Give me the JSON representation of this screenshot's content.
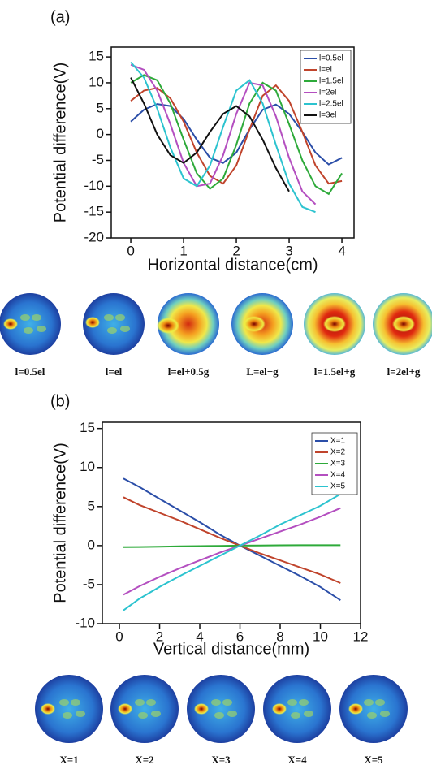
{
  "chart_data": [
    {
      "type": "line",
      "panel_label": "(a)",
      "x_label": "Horizontal distance(cm)",
      "y_label": "Potential difference(V)",
      "x": [
        0,
        0.25,
        0.5,
        0.75,
        1,
        1.25,
        1.5,
        1.75,
        2,
        2.25,
        2.5,
        2.75,
        3,
        3.25,
        3.5,
        3.75,
        4
      ],
      "series": [
        {
          "name": "l=0.5el",
          "color": "#2b4ea8",
          "values": [
            2.5,
            4.8,
            5.9,
            5.5,
            3,
            -1,
            -4.5,
            -5.5,
            -3.5,
            1,
            4.8,
            5.8,
            4,
            0.5,
            -3.5,
            -5.8,
            -4.5
          ]
        },
        {
          "name": "l=el",
          "color": "#c0442c",
          "values": [
            6.5,
            8.5,
            9,
            7,
            2.5,
            -3.5,
            -8,
            -9.5,
            -6,
            1,
            7.5,
            9.5,
            6.5,
            0.5,
            -6,
            -9.5,
            -9
          ]
        },
        {
          "name": "l=1.5el",
          "color": "#2eaa3a",
          "values": [
            10,
            11.5,
            10.5,
            6,
            -1,
            -7.5,
            -10.5,
            -8.5,
            -2,
            6,
            10,
            8.5,
            2,
            -5,
            -10,
            -11.5,
            -7.5
          ]
        },
        {
          "name": "l=2el",
          "color": "#b44fc0",
          "values": [
            13.5,
            12.5,
            8.5,
            2,
            -5.5,
            -10,
            -9.5,
            -4,
            4,
            10,
            9.5,
            3.5,
            -4.5,
            -11,
            -13.5,
            null,
            null
          ]
        },
        {
          "name": "l=2.5el",
          "color": "#2cc3cf",
          "values": [
            14,
            11,
            5,
            -2.5,
            -8.5,
            -10,
            -6,
            1.5,
            8.5,
            10.5,
            6,
            -2,
            -9.5,
            -14,
            -15,
            null,
            null
          ]
        },
        {
          "name": "l=3el",
          "color": "#111111",
          "values": [
            11,
            6,
            0,
            -4,
            -5.5,
            -3.5,
            0.5,
            4,
            5.5,
            3.5,
            -1,
            -6.5,
            -11,
            null,
            null,
            null,
            null
          ]
        }
      ],
      "xlim": [
        -0.37,
        4.23
      ],
      "xticks": [
        0,
        1,
        2,
        3,
        4
      ],
      "ylim": [
        -20,
        16.9
      ],
      "yticks": [
        -20,
        -15,
        -10,
        -5,
        0,
        5,
        10,
        15
      ],
      "legend": "upper right"
    },
    {
      "type": "line",
      "panel_label": "(b)",
      "x_label": "Vertical distance(mm)",
      "y_label": "Potential difference(V)",
      "x": [
        0.2,
        1,
        2,
        3,
        4,
        5,
        6,
        7,
        8,
        9,
        10,
        11
      ],
      "series": [
        {
          "name": "X=1",
          "color": "#2b4ea8",
          "values": [
            8.6,
            7.5,
            6,
            4.5,
            3,
            1.4,
            0,
            -1.3,
            -2.6,
            -3.9,
            -5.3,
            -7
          ]
        },
        {
          "name": "X=2",
          "color": "#c0442c",
          "values": [
            6.2,
            5.2,
            4.2,
            3.2,
            2.1,
            1,
            0,
            -1,
            -1.9,
            -2.8,
            -3.7,
            -4.8
          ]
        },
        {
          "name": "X=3",
          "color": "#2eaa3a",
          "values": [
            -0.2,
            -0.18,
            -0.15,
            -0.1,
            -0.07,
            -0.03,
            0,
            0.02,
            0.04,
            0.05,
            0.05,
            0.05
          ]
        },
        {
          "name": "X=4",
          "color": "#b44fc0",
          "values": [
            -6.3,
            -5.2,
            -4,
            -2.9,
            -1.9,
            -0.9,
            0,
            0.9,
            1.8,
            2.7,
            3.7,
            4.8
          ]
        },
        {
          "name": "X=5",
          "color": "#2cc3cf",
          "values": [
            -8.3,
            -6.8,
            -5.3,
            -3.9,
            -2.6,
            -1.3,
            0,
            1.3,
            2.7,
            3.9,
            5.1,
            6.6
          ]
        }
      ],
      "xlim": [
        -0.85,
        12
      ],
      "xticks": [
        0,
        2,
        4,
        6,
        8,
        10,
        12
      ],
      "ylim": [
        -10,
        15.8
      ],
      "yticks": [
        -10,
        -5,
        0,
        5,
        10,
        15
      ],
      "legend": "upper right"
    }
  ],
  "thumbnails": [
    {
      "labels": [
        "l=0.5el",
        "l=el",
        "l=el+0.5g",
        "L=el+g",
        "l=1.5el+g",
        "l=2el+g"
      ]
    },
    {
      "labels": [
        "X=1",
        "X=2",
        "X=3",
        "X=4",
        "X=5"
      ]
    }
  ]
}
